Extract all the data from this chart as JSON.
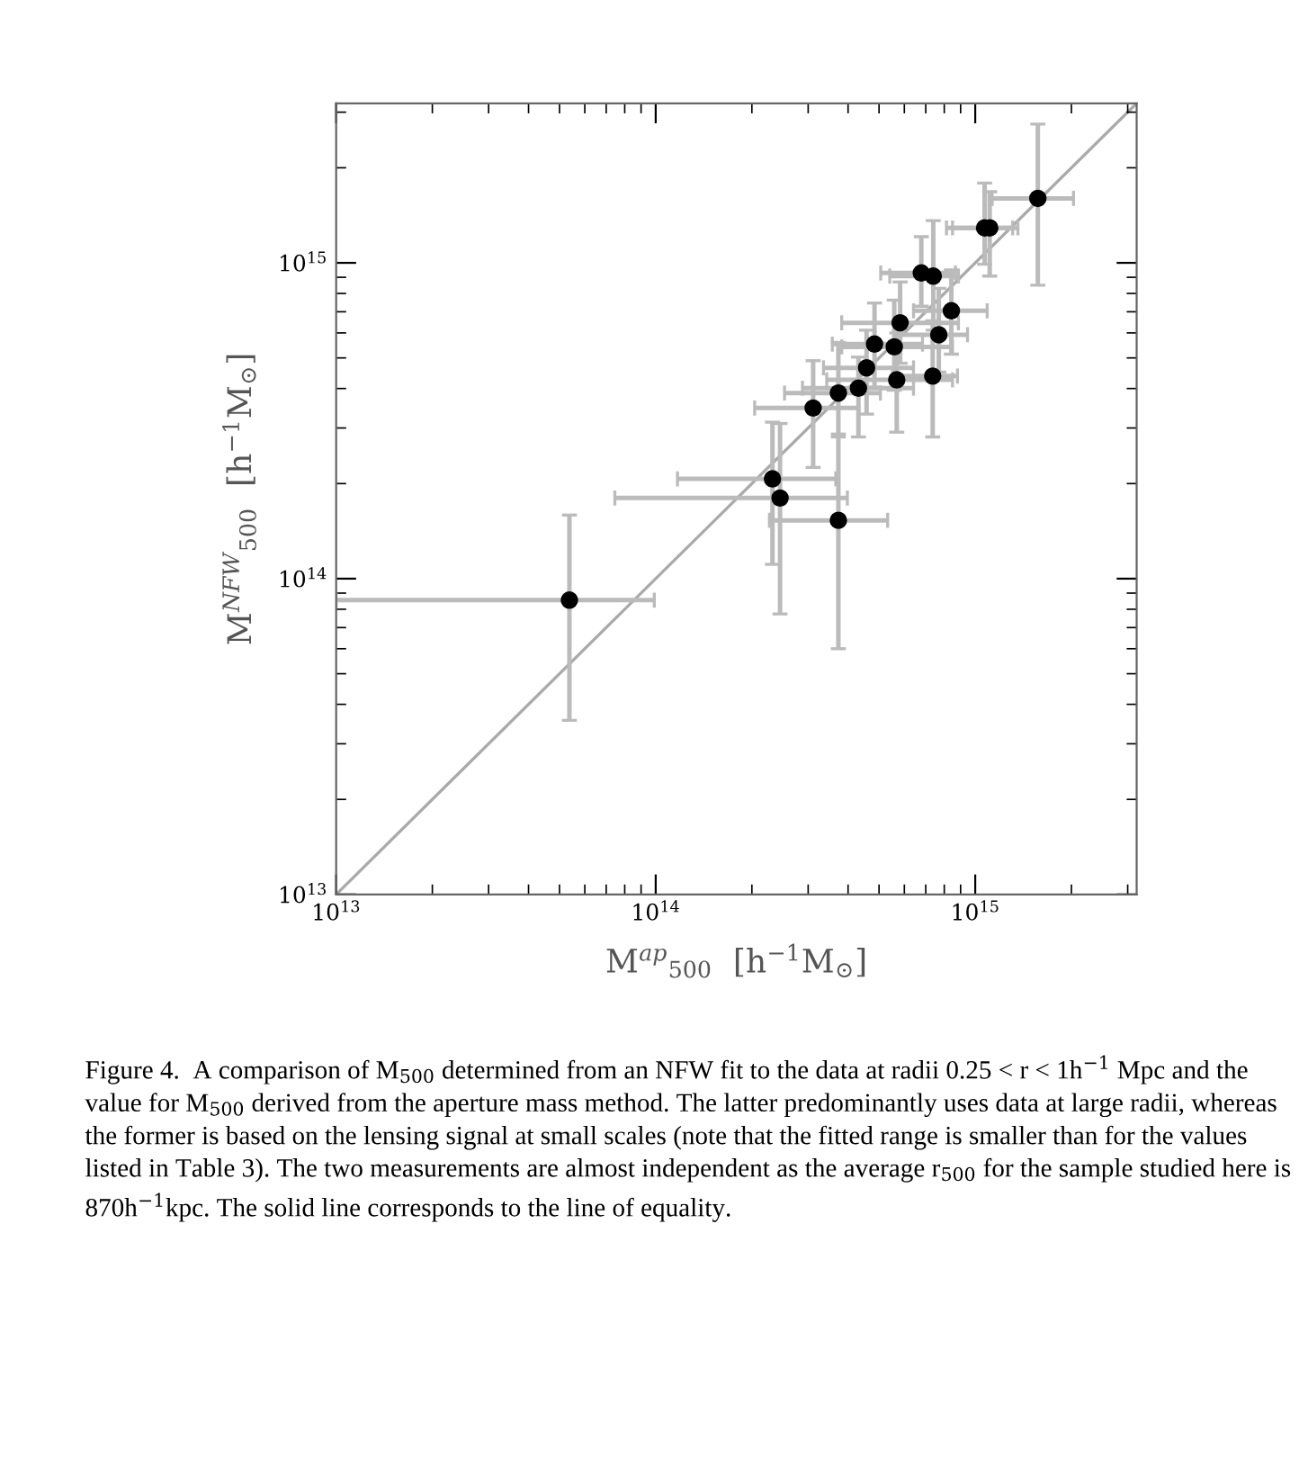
{
  "chart_data": {
    "type": "scatter",
    "xlabel": "M$^{ap}$$_{500}$  [h$^{−1}$M$_{⊙}$]",
    "ylabel": "M$^{NFW}$$_{500}$  [h$^{−1}$M$_{⊙}$]",
    "log": "xy",
    "xlim": [
      10000000000000.0,
      3200000000000000.0
    ],
    "ylim": [
      10000000000000.0,
      3200000000000000.0
    ],
    "xticks": [
      {
        "value": 10000000000000.0,
        "label": "10$^{13}$"
      },
      {
        "value": 100000000000000.0,
        "label": "10$^{14}$"
      },
      {
        "value": 1000000000000000.0,
        "label": "10$^{15}$"
      }
    ],
    "yticks": [
      {
        "value": 10000000000000.0,
        "label": "10$^{13}$"
      },
      {
        "value": 100000000000000.0,
        "label": "10$^{14}$"
      },
      {
        "value": 1000000000000000.0,
        "label": "10$^{15}$"
      }
    ],
    "grid": false,
    "series": [
      {
        "type": "line",
        "color": "#aaaaaa",
        "line_style": "solid",
        "marker": "none",
        "x": [
          10000000000000.0,
          3200000000000000.0
        ],
        "values": [
          10000000000000.0,
          3200000000000000.0
        ]
      },
      {
        "color": "#000000",
        "marker": "circle",
        "x": [
          53700000000000.0,
          232000000000000.0,
          245000000000000.0,
          373000000000000.0,
          311000000000000.0,
          373000000000000.0,
          431000000000000.0,
          457000000000000.0,
          484000000000000.0,
          558000000000000.0,
          582000000000000.0,
          568000000000000.0,
          736000000000000.0,
          769000000000000.0,
          842000000000000.0,
          678000000000000.0,
          739000000000000.0,
          1070000000000000.0,
          1110000000000000.0,
          1570000000000000.0
        ],
        "values": [
          85500000000000.0,
          207000000000000.0,
          180000000000000.0,
          153000000000000.0,
          347000000000000.0,
          387000000000000.0,
          401000000000000.0,
          465000000000000.0,
          553000000000000.0,
          542000000000000.0,
          646000000000000.0,
          426000000000000.0,
          438000000000000.0,
          592000000000000.0,
          705000000000000.0,
          929000000000000.0,
          908000000000000.0,
          1290000000000000.0,
          1290000000000000.0,
          1600000000000000.0
        ],
        "xerrors": [
          [
            10000000000000.0,
            99000000000000.0
          ],
          [
            117000000000000.0,
            366000000000000.0
          ],
          [
            74500000000000.0,
            398000000000000.0
          ],
          [
            227000000000000.0,
            532000000000000.0
          ],
          [
            204000000000000.0,
            430000000000000.0
          ],
          [
            253000000000000.0,
            505000000000000.0
          ],
          [
            288000000000000.0,
            641000000000000.0
          ],
          [
            335000000000000.0,
            641000000000000.0
          ],
          [
            357000000000000.0,
            684000000000000.0
          ],
          [
            382000000000000.0,
            849000000000000.0
          ],
          [
            382000000000000.0,
            886000000000000.0
          ],
          [
            343000000000000.0,
            849000000000000.0
          ],
          [
            551000000000000.0,
            880000000000000.0
          ],
          [
            575000000000000.0,
            946000000000000.0
          ],
          [
            641000000000000.0,
            1090000000000000.0
          ],
          [
            506000000000000.0,
            867000000000000.0
          ],
          [
            540000000000000.0,
            886000000000000.0
          ],
          [
            813000000000000.0,
            1310000000000000.0
          ],
          [
            849000000000000.0,
            1360000000000000.0
          ],
          [
            1130000000000000.0,
            2030000000000000.0
          ]
        ],
        "errors": [
          [
            35600000000000.0,
            159000000000000.0
          ],
          [
            111000000000000.0,
            313000000000000.0
          ],
          [
            77300000000000.0,
            310000000000000.0
          ],
          [
            60000000000000.0,
            287000000000000.0
          ],
          [
            225000000000000.0,
            490000000000000.0
          ],
          [
            281000000000000.0,
            560000000000000.0
          ],
          [
            281000000000000.0,
            503000000000000.0
          ],
          [
            332000000000000.0,
            612000000000000.0
          ],
          [
            404000000000000.0,
            746000000000000.0
          ],
          [
            395000000000000.0,
            762000000000000.0
          ],
          [
            481000000000000.0,
            870000000000000.0
          ],
          [
            291000000000000.0,
            600000000000000.0
          ],
          [
            281000000000000.0,
            655000000000000.0
          ],
          [
            451000000000000.0,
            830000000000000.0
          ],
          [
            514000000000000.0,
            950000000000000.0
          ],
          [
            729000000000000.0,
            1210000000000000.0
          ],
          [
            612000000000000.0,
            1360000000000000.0
          ],
          [
            990000000000000.0,
            1790000000000000.0
          ],
          [
            908000000000000.0,
            1680000000000000.0
          ],
          [
            850000000000000.0,
            2750000000000000.0
          ]
        ]
      }
    ],
    "annotations": [
      "Figure 4.  A comparison of M$_{500}$ determined from an NFW fit to the data at radii 0.25 < r < 1h$^{−1}$ Mpc and the value for M$_{500}$ derived from the aperture mass method. The latter predominantly uses data at large radii, whereas the former is based on the lensing signal at small scales (note that the fitted range is smaller than for the values listed in Table 3). The two measurements are almost independent as the average r$_{500}$ for the sample studied here is 870h$^{−1}$kpc. The solid line corresponds to the line of equality."
    ]
  }
}
